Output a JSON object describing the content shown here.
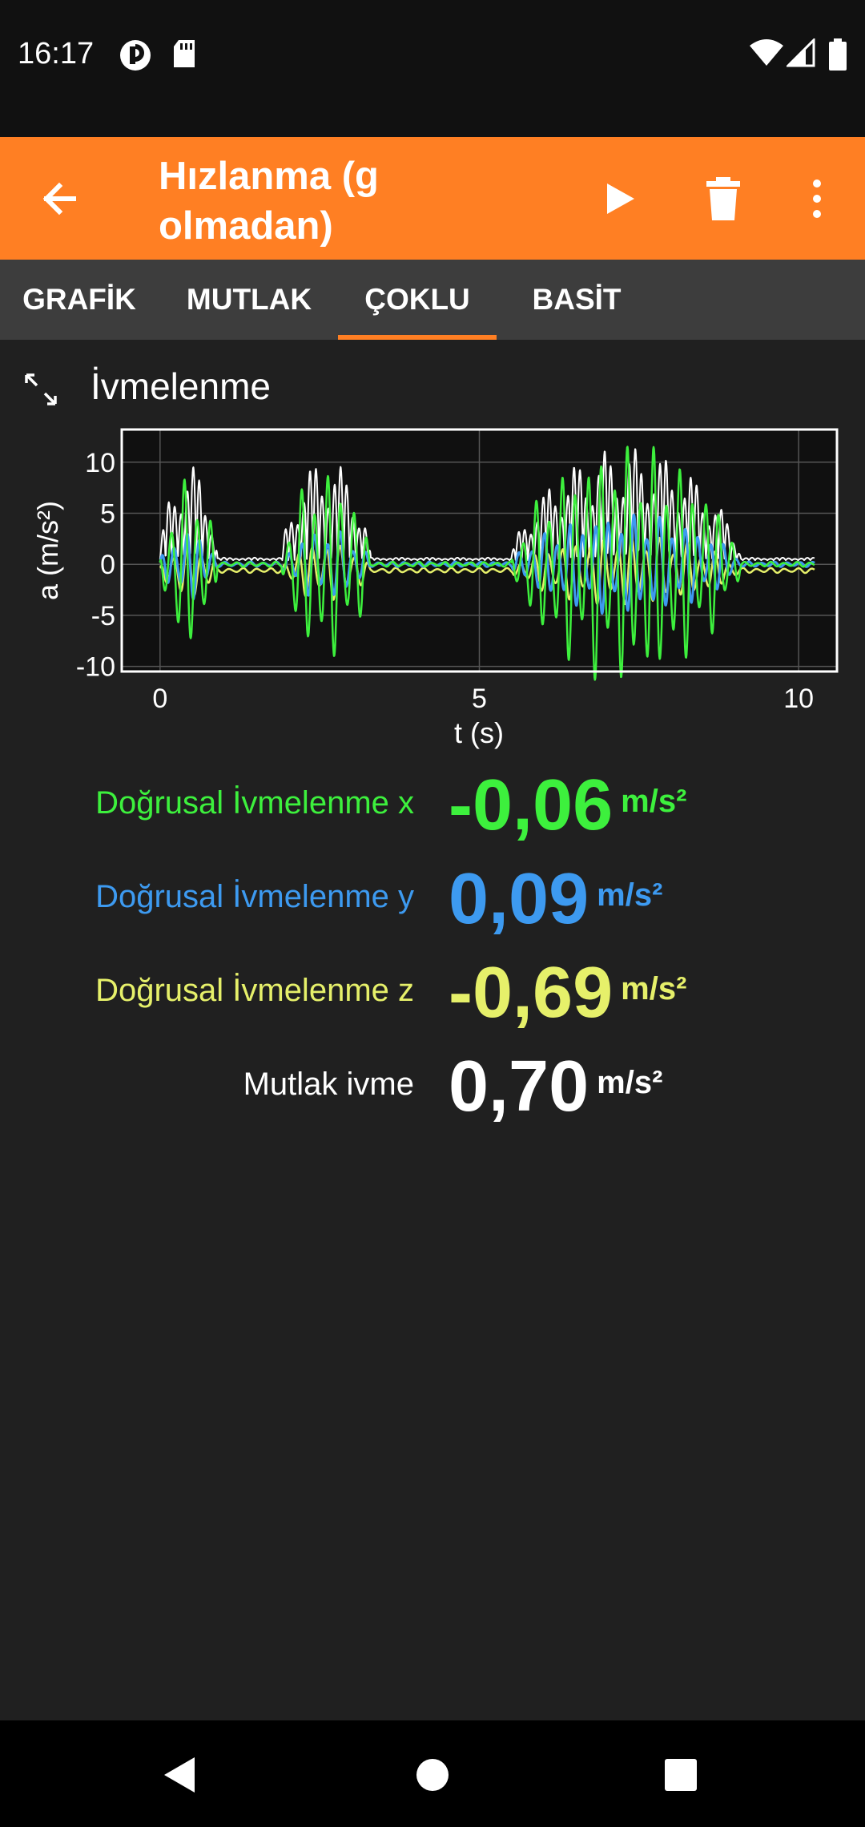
{
  "status_bar": {
    "time": "16:17",
    "icons": [
      "app-notification-icon",
      "sd-card-icon",
      "wifi-icon",
      "signal-icon",
      "battery-icon"
    ]
  },
  "app_bar": {
    "title": "Hızlanma (g olmadan)",
    "actions": [
      "back-arrow-icon",
      "play-icon",
      "trash-icon",
      "more-vert-icon"
    ],
    "background": "#FF7F23"
  },
  "tabs": [
    {
      "label": "GRAFİK",
      "active": false
    },
    {
      "label": "MUTLAK",
      "active": false
    },
    {
      "label": "ÇOKLU",
      "active": true
    },
    {
      "label": "BASİT",
      "active": false
    }
  ],
  "section": {
    "title": "İvmelenme",
    "icon": "expand-icon"
  },
  "chart_data": {
    "type": "line",
    "xlabel": "t (s)",
    "ylabel": "a (m/s²)",
    "xlim": [
      -0.6,
      10.6
    ],
    "ylim": [
      -10.5,
      13.2
    ],
    "xticks": [
      0,
      5,
      10
    ],
    "yticks": [
      10,
      5,
      0,
      -5,
      -10
    ],
    "grid": true,
    "colors": {
      "x": "#3df03d",
      "y": "#3d9af0",
      "z": "#e6f06a",
      "abs": "#ffffff"
    },
    "bursts": [
      {
        "t0": 0.0,
        "t1": 0.9,
        "x_amp": 8.5,
        "y_amp": 3.5,
        "z_amp": 3.0,
        "abs_amp": 9.5
      },
      {
        "t0": 1.9,
        "t1": 3.3,
        "x_amp": 9.5,
        "y_amp": 3.5,
        "z_amp": 3.0,
        "abs_amp": 10.0
      },
      {
        "t0": 5.5,
        "t1": 9.1,
        "x_amp": 12.0,
        "y_amp": 5.0,
        "z_amp": 3.5,
        "abs_amp": 11.0
      }
    ]
  },
  "readings": [
    {
      "label": "Doğrusal İvmelenme x",
      "value": "-0,06",
      "unit": "m/s²",
      "color": "#3df03d"
    },
    {
      "label": "Doğrusal İvmelenme y",
      "value": "0,09",
      "unit": "m/s²",
      "color": "#3d9af0"
    },
    {
      "label": "Doğrusal İvmelenme z",
      "value": "-0,69",
      "unit": "m/s²",
      "color": "#e6f06a"
    },
    {
      "label": "Mutlak ivme",
      "value": "0,70",
      "unit": "m/s²",
      "color": "#ffffff"
    }
  ],
  "nav_bar": [
    "back-triangle-icon",
    "home-circle-icon",
    "recents-square-icon"
  ]
}
